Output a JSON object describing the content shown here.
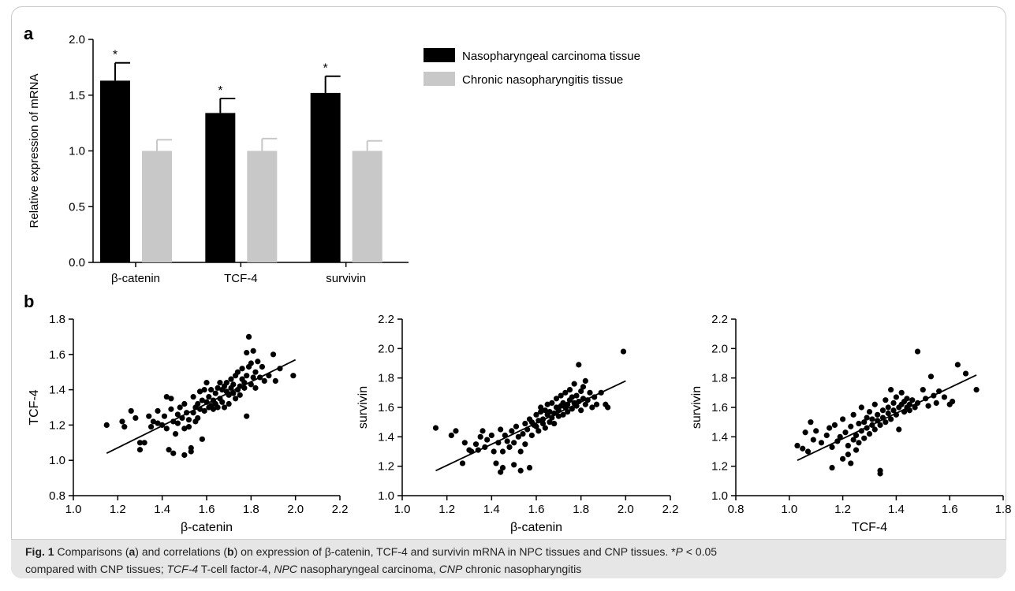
{
  "chart_data": [
    {
      "panel_label": "a",
      "type": "bar",
      "categories": [
        "β-catenin",
        "TCF-4",
        "survivin"
      ],
      "series": [
        {
          "name": "Nasopharyngeal carcinoma tissue",
          "color": "#000000",
          "values": [
            1.63,
            1.34,
            1.52
          ],
          "errors": [
            0.16,
            0.13,
            0.15
          ]
        },
        {
          "name": "Chronic nasopharyngitis tissue",
          "color": "#c8c8c8",
          "values": [
            1.0,
            1.0,
            1.0
          ],
          "errors": [
            0.1,
            0.11,
            0.09
          ]
        }
      ],
      "significance": [
        "*",
        "*",
        "*"
      ],
      "ylabel": "Relative expression of  mRNA",
      "ylim": [
        0.0,
        2.0
      ],
      "yticks": [
        "0.0",
        "0.5",
        "1.0",
        "1.5",
        "2.0"
      ],
      "legend_position": "top-right"
    },
    {
      "panel_label": "b",
      "type": "scatter",
      "xlabel": "β-catenin",
      "ylabel": "TCF-4",
      "xlim": [
        1.0,
        2.2
      ],
      "ylim": [
        0.8,
        1.8
      ],
      "xticks": [
        "1.0",
        "1.2",
        "1.4",
        "1.6",
        "1.8",
        "2.0",
        "2.2"
      ],
      "yticks": [
        "0.8",
        "1.0",
        "1.2",
        "1.4",
        "1.6",
        "1.8"
      ],
      "fit_line": [
        [
          1.15,
          1.04
        ],
        [
          2.0,
          1.57
        ]
      ],
      "points": [
        [
          1.15,
          1.2
        ],
        [
          1.22,
          1.22
        ],
        [
          1.23,
          1.19
        ],
        [
          1.26,
          1.28
        ],
        [
          1.28,
          1.24
        ],
        [
          1.3,
          1.1
        ],
        [
          1.3,
          1.06
        ],
        [
          1.32,
          1.1
        ],
        [
          1.34,
          1.25
        ],
        [
          1.35,
          1.19
        ],
        [
          1.36,
          1.22
        ],
        [
          1.38,
          1.28
        ],
        [
          1.38,
          1.21
        ],
        [
          1.4,
          1.2
        ],
        [
          1.41,
          1.25
        ],
        [
          1.42,
          1.36
        ],
        [
          1.42,
          1.18
        ],
        [
          1.43,
          1.06
        ],
        [
          1.44,
          1.29
        ],
        [
          1.44,
          1.35
        ],
        [
          1.45,
          1.04
        ],
        [
          1.45,
          1.22
        ],
        [
          1.46,
          1.15
        ],
        [
          1.47,
          1.26
        ],
        [
          1.47,
          1.21
        ],
        [
          1.48,
          1.3
        ],
        [
          1.49,
          1.24
        ],
        [
          1.5,
          1.18
        ],
        [
          1.5,
          1.03
        ],
        [
          1.5,
          1.32
        ],
        [
          1.51,
          1.27
        ],
        [
          1.52,
          1.23
        ],
        [
          1.52,
          1.19
        ],
        [
          1.53,
          1.07
        ],
        [
          1.53,
          1.05
        ],
        [
          1.54,
          1.27
        ],
        [
          1.54,
          1.36
        ],
        [
          1.55,
          1.3
        ],
        [
          1.55,
          1.22
        ],
        [
          1.56,
          1.24
        ],
        [
          1.56,
          1.32
        ],
        [
          1.57,
          1.29
        ],
        [
          1.57,
          1.39
        ],
        [
          1.58,
          1.34
        ],
        [
          1.58,
          1.12
        ],
        [
          1.59,
          1.28
        ],
        [
          1.59,
          1.4
        ],
        [
          1.6,
          1.33
        ],
        [
          1.6,
          1.44
        ],
        [
          1.61,
          1.3
        ],
        [
          1.61,
          1.36
        ],
        [
          1.62,
          1.31
        ],
        [
          1.62,
          1.4
        ],
        [
          1.63,
          1.34
        ],
        [
          1.63,
          1.29
        ],
        [
          1.64,
          1.32
        ],
        [
          1.64,
          1.38
        ],
        [
          1.65,
          1.41
        ],
        [
          1.65,
          1.3
        ],
        [
          1.66,
          1.35
        ],
        [
          1.66,
          1.44
        ],
        [
          1.67,
          1.33
        ],
        [
          1.67,
          1.4
        ],
        [
          1.68,
          1.42
        ],
        [
          1.68,
          1.3
        ],
        [
          1.69,
          1.39
        ],
        [
          1.69,
          1.44
        ],
        [
          1.7,
          1.37
        ],
        [
          1.7,
          1.32
        ],
        [
          1.71,
          1.46
        ],
        [
          1.71,
          1.41
        ],
        [
          1.72,
          1.38
        ],
        [
          1.72,
          1.43
        ],
        [
          1.73,
          1.35
        ],
        [
          1.73,
          1.48
        ],
        [
          1.74,
          1.4
        ],
        [
          1.74,
          1.5
        ],
        [
          1.75,
          1.42
        ],
        [
          1.75,
          1.37
        ],
        [
          1.76,
          1.46
        ],
        [
          1.76,
          1.52
        ],
        [
          1.77,
          1.41
        ],
        [
          1.77,
          1.44
        ],
        [
          1.78,
          1.61
        ],
        [
          1.78,
          1.48
        ],
        [
          1.78,
          1.25
        ],
        [
          1.79,
          1.53
        ],
        [
          1.79,
          1.7
        ],
        [
          1.8,
          1.43
        ],
        [
          1.8,
          1.55
        ],
        [
          1.81,
          1.47
        ],
        [
          1.81,
          1.62
        ],
        [
          1.82,
          1.5
        ],
        [
          1.82,
          1.41
        ],
        [
          1.83,
          1.56
        ],
        [
          1.84,
          1.47
        ],
        [
          1.85,
          1.53
        ],
        [
          1.86,
          1.45
        ],
        [
          1.88,
          1.48
        ],
        [
          1.9,
          1.6
        ],
        [
          1.91,
          1.45
        ],
        [
          1.93,
          1.52
        ],
        [
          1.99,
          1.48
        ]
      ]
    },
    {
      "panel_label": "",
      "type": "scatter",
      "xlabel": "β-catenin",
      "ylabel": "survivin",
      "xlim": [
        1.0,
        2.2
      ],
      "ylim": [
        1.0,
        2.2
      ],
      "xticks": [
        "1.0",
        "1.2",
        "1.4",
        "1.6",
        "1.8",
        "2.0",
        "2.2"
      ],
      "yticks": [
        "1.0",
        "1.2",
        "1.4",
        "1.6",
        "1.8",
        "2.0",
        "2.2"
      ],
      "fit_line": [
        [
          1.15,
          1.17
        ],
        [
          2.0,
          1.78
        ]
      ],
      "points": [
        [
          1.15,
          1.46
        ],
        [
          1.22,
          1.41
        ],
        [
          1.24,
          1.44
        ],
        [
          1.27,
          1.22
        ],
        [
          1.28,
          1.36
        ],
        [
          1.3,
          1.31
        ],
        [
          1.31,
          1.3
        ],
        [
          1.33,
          1.35
        ],
        [
          1.34,
          1.31
        ],
        [
          1.35,
          1.4
        ],
        [
          1.36,
          1.44
        ],
        [
          1.37,
          1.33
        ],
        [
          1.38,
          1.38
        ],
        [
          1.4,
          1.41
        ],
        [
          1.41,
          1.3
        ],
        [
          1.42,
          1.22
        ],
        [
          1.43,
          1.36
        ],
        [
          1.44,
          1.16
        ],
        [
          1.44,
          1.45
        ],
        [
          1.45,
          1.19
        ],
        [
          1.45,
          1.3
        ],
        [
          1.46,
          1.41
        ],
        [
          1.47,
          1.37
        ],
        [
          1.48,
          1.33
        ],
        [
          1.49,
          1.44
        ],
        [
          1.5,
          1.21
        ],
        [
          1.5,
          1.36
        ],
        [
          1.51,
          1.47
        ],
        [
          1.52,
          1.4
        ],
        [
          1.53,
          1.17
        ],
        [
          1.53,
          1.3
        ],
        [
          1.54,
          1.42
        ],
        [
          1.55,
          1.49
        ],
        [
          1.55,
          1.35
        ],
        [
          1.56,
          1.45
        ],
        [
          1.57,
          1.52
        ],
        [
          1.57,
          1.19
        ],
        [
          1.58,
          1.5
        ],
        [
          1.58,
          1.41
        ],
        [
          1.59,
          1.48
        ],
        [
          1.6,
          1.55
        ],
        [
          1.6,
          1.47
        ],
        [
          1.61,
          1.51
        ],
        [
          1.61,
          1.44
        ],
        [
          1.62,
          1.57
        ],
        [
          1.62,
          1.6
        ],
        [
          1.63,
          1.52
        ],
        [
          1.63,
          1.49
        ],
        [
          1.64,
          1.58
        ],
        [
          1.64,
          1.46
        ],
        [
          1.65,
          1.55
        ],
        [
          1.65,
          1.62
        ],
        [
          1.66,
          1.5
        ],
        [
          1.66,
          1.57
        ],
        [
          1.67,
          1.53
        ],
        [
          1.67,
          1.63
        ],
        [
          1.68,
          1.56
        ],
        [
          1.68,
          1.49
        ],
        [
          1.69,
          1.6
        ],
        [
          1.69,
          1.66
        ],
        [
          1.7,
          1.54
        ],
        [
          1.7,
          1.58
        ],
        [
          1.71,
          1.61
        ],
        [
          1.71,
          1.68
        ],
        [
          1.72,
          1.55
        ],
        [
          1.72,
          1.63
        ],
        [
          1.73,
          1.6
        ],
        [
          1.73,
          1.7
        ],
        [
          1.74,
          1.62
        ],
        [
          1.74,
          1.57
        ],
        [
          1.75,
          1.65
        ],
        [
          1.75,
          1.72
        ],
        [
          1.76,
          1.59
        ],
        [
          1.76,
          1.67
        ],
        [
          1.77,
          1.63
        ],
        [
          1.77,
          1.76
        ],
        [
          1.78,
          1.61
        ],
        [
          1.78,
          1.68
        ],
        [
          1.79,
          1.89
        ],
        [
          1.79,
          1.64
        ],
        [
          1.8,
          1.71
        ],
        [
          1.8,
          1.58
        ],
        [
          1.81,
          1.66
        ],
        [
          1.81,
          1.74
        ],
        [
          1.82,
          1.62
        ],
        [
          1.82,
          1.78
        ],
        [
          1.83,
          1.65
        ],
        [
          1.84,
          1.7
        ],
        [
          1.85,
          1.6
        ],
        [
          1.86,
          1.67
        ],
        [
          1.87,
          1.62
        ],
        [
          1.89,
          1.7
        ],
        [
          1.91,
          1.62
        ],
        [
          1.92,
          1.6
        ],
        [
          1.99,
          1.98
        ]
      ]
    },
    {
      "panel_label": "",
      "type": "scatter",
      "xlabel": "TCF-4",
      "ylabel": "survivin",
      "xlim": [
        0.8,
        1.8
      ],
      "ylim": [
        1.0,
        2.2
      ],
      "xticks": [
        "0.8",
        "1.0",
        "1.2",
        "1.4",
        "1.6",
        "1.8"
      ],
      "yticks": [
        "1.0",
        "1.2",
        "1.4",
        "1.6",
        "1.8",
        "2.0",
        "2.2"
      ],
      "fit_line": [
        [
          1.03,
          1.24
        ],
        [
          1.7,
          1.82
        ]
      ],
      "points": [
        [
          1.03,
          1.34
        ],
        [
          1.05,
          1.32
        ],
        [
          1.06,
          1.43
        ],
        [
          1.07,
          1.3
        ],
        [
          1.08,
          1.5
        ],
        [
          1.09,
          1.38
        ],
        [
          1.1,
          1.44
        ],
        [
          1.12,
          1.36
        ],
        [
          1.14,
          1.41
        ],
        [
          1.15,
          1.46
        ],
        [
          1.16,
          1.19
        ],
        [
          1.16,
          1.33
        ],
        [
          1.17,
          1.48
        ],
        [
          1.18,
          1.37
        ],
        [
          1.19,
          1.4
        ],
        [
          1.2,
          1.25
        ],
        [
          1.2,
          1.52
        ],
        [
          1.21,
          1.43
        ],
        [
          1.22,
          1.34
        ],
        [
          1.22,
          1.28
        ],
        [
          1.23,
          1.47
        ],
        [
          1.23,
          1.22
        ],
        [
          1.24,
          1.38
        ],
        [
          1.24,
          1.55
        ],
        [
          1.25,
          1.41
        ],
        [
          1.25,
          1.31
        ],
        [
          1.26,
          1.49
        ],
        [
          1.26,
          1.36
        ],
        [
          1.27,
          1.44
        ],
        [
          1.27,
          1.6
        ],
        [
          1.28,
          1.39
        ],
        [
          1.28,
          1.5
        ],
        [
          1.29,
          1.46
        ],
        [
          1.29,
          1.53
        ],
        [
          1.3,
          1.42
        ],
        [
          1.3,
          1.57
        ],
        [
          1.31,
          1.48
        ],
        [
          1.31,
          1.52
        ],
        [
          1.32,
          1.45
        ],
        [
          1.32,
          1.62
        ],
        [
          1.33,
          1.51
        ],
        [
          1.33,
          1.55
        ],
        [
          1.34,
          1.17
        ],
        [
          1.34,
          1.15
        ],
        [
          1.34,
          1.48
        ],
        [
          1.35,
          1.58
        ],
        [
          1.35,
          1.53
        ],
        [
          1.36,
          1.65
        ],
        [
          1.36,
          1.5
        ],
        [
          1.37,
          1.56
        ],
        [
          1.37,
          1.6
        ],
        [
          1.38,
          1.52
        ],
        [
          1.38,
          1.72
        ],
        [
          1.39,
          1.58
        ],
        [
          1.39,
          1.63
        ],
        [
          1.4,
          1.55
        ],
        [
          1.4,
          1.67
        ],
        [
          1.41,
          1.6
        ],
        [
          1.41,
          1.45
        ],
        [
          1.42,
          1.62
        ],
        [
          1.42,
          1.7
        ],
        [
          1.43,
          1.57
        ],
        [
          1.43,
          1.64
        ],
        [
          1.44,
          1.6
        ],
        [
          1.44,
          1.66
        ],
        [
          1.45,
          1.62
        ],
        [
          1.45,
          1.58
        ],
        [
          1.46,
          1.65
        ],
        [
          1.47,
          1.6
        ],
        [
          1.48,
          1.98
        ],
        [
          1.48,
          1.63
        ],
        [
          1.5,
          1.72
        ],
        [
          1.51,
          1.66
        ],
        [
          1.52,
          1.61
        ],
        [
          1.53,
          1.81
        ],
        [
          1.54,
          1.68
        ],
        [
          1.55,
          1.63
        ],
        [
          1.56,
          1.71
        ],
        [
          1.58,
          1.67
        ],
        [
          1.6,
          1.62
        ],
        [
          1.61,
          1.64
        ],
        [
          1.63,
          1.89
        ],
        [
          1.66,
          1.83
        ],
        [
          1.7,
          1.72
        ]
      ]
    }
  ],
  "panel_labels": {
    "a": "a",
    "b": "b"
  },
  "caption": {
    "fig_label": "Fig. 1",
    "part1": "  Comparisons (",
    "a": "a",
    "part2": ") and correlations (",
    "b": "b",
    "part3": ") on expression of β-catenin, TCF-4 and survivin mRNA in NPC tissues and CNP tissues. *",
    "p": "P",
    "part4": " < 0.05",
    "part5": "compared with CNP tissues; ",
    "abbr1": "TCF-4",
    "def1": " T-cell factor-4, ",
    "abbr2": "NPC",
    "def2": " nasopharyngeal carcinoma, ",
    "abbr3": "CNP",
    "def3": " chronic nasopharyngitis"
  }
}
